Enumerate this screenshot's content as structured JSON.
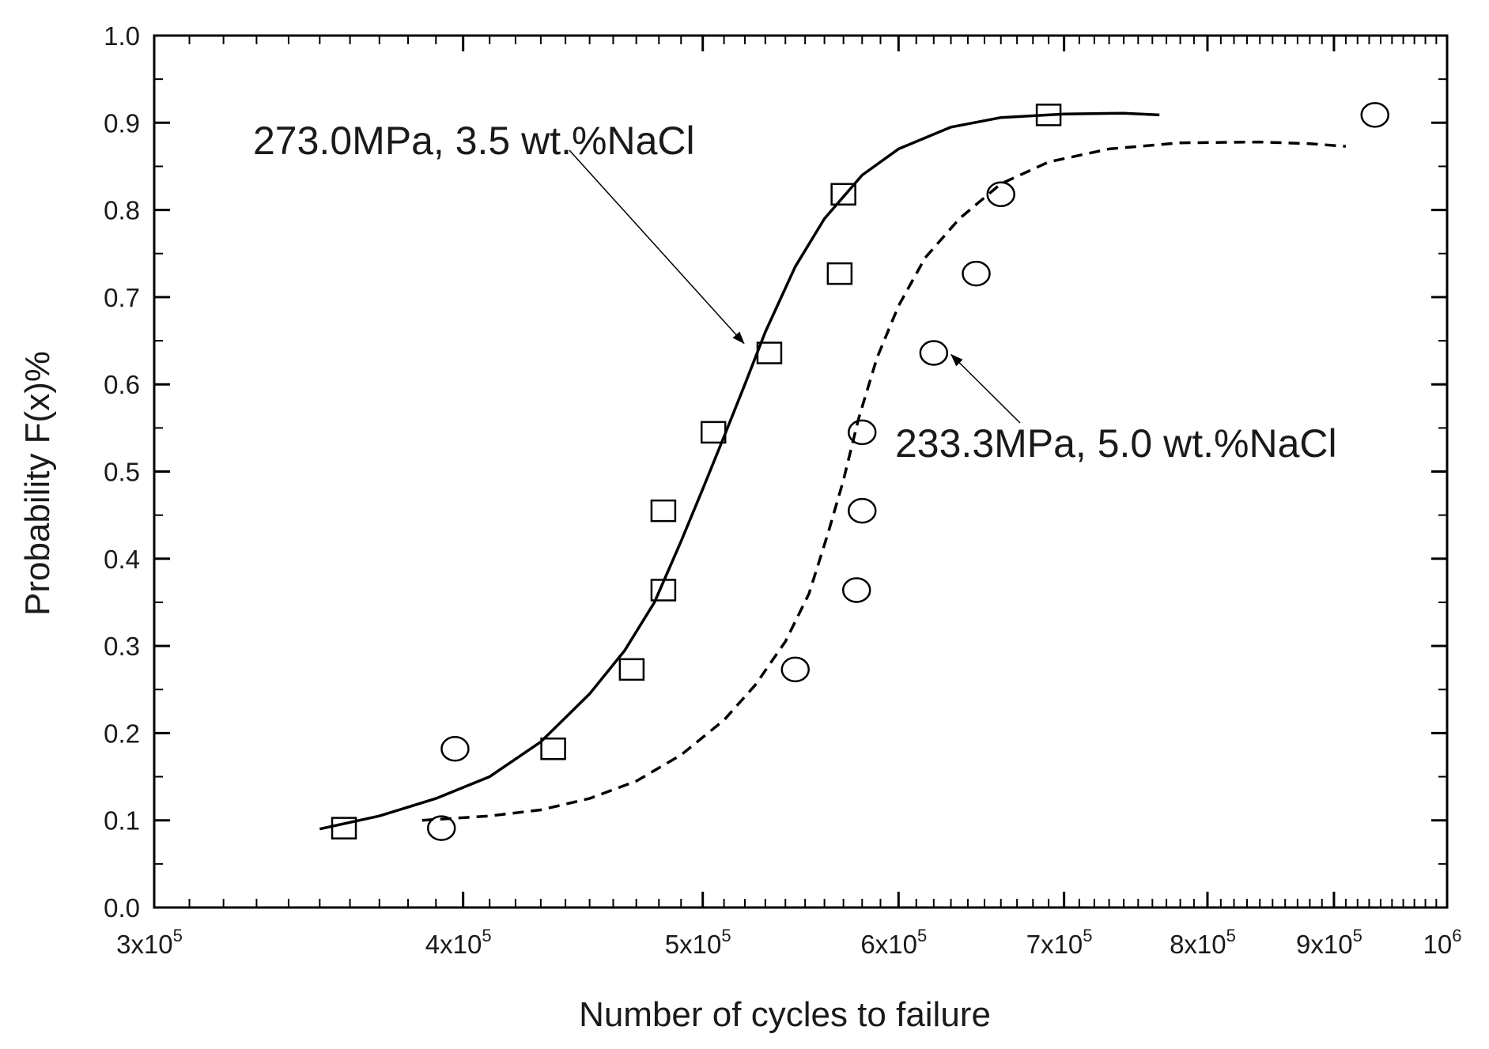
{
  "chart_data": {
    "type": "scatter",
    "title": "",
    "xlabel": "Number of cycles to failure",
    "ylabel": "Probability F(x)%",
    "xscale": "log",
    "xlim": [
      300000,
      1000000
    ],
    "ylim": [
      0.0,
      1.0
    ],
    "x_ticks": [
      {
        "value": 300000,
        "mant": "3x10",
        "exp": "5"
      },
      {
        "value": 400000,
        "mant": "4x10",
        "exp": "5"
      },
      {
        "value": 500000,
        "mant": "5x10",
        "exp": "5"
      },
      {
        "value": 600000,
        "mant": "6x10",
        "exp": "5"
      },
      {
        "value": 700000,
        "mant": "7x10",
        "exp": "5"
      },
      {
        "value": 800000,
        "mant": "8x10",
        "exp": "5"
      },
      {
        "value": 900000,
        "mant": "9x10",
        "exp": "5"
      },
      {
        "value": 1000000,
        "mant": "10",
        "exp": "6"
      }
    ],
    "y_ticks": [
      "0.0",
      "0.1",
      "0.2",
      "0.3",
      "0.4",
      "0.5",
      "0.6",
      "0.7",
      "0.8",
      "0.9",
      "1.0"
    ],
    "series": [
      {
        "name": "273.0MPa, 3.5 wt.%NaCl",
        "marker": "square",
        "line_style": "solid",
        "points": [
          [
            358000,
            0.091
          ],
          [
            435000,
            0.182
          ],
          [
            468000,
            0.273
          ],
          [
            482000,
            0.364
          ],
          [
            482000,
            0.455
          ],
          [
            505000,
            0.545
          ],
          [
            532000,
            0.636
          ],
          [
            568000,
            0.727
          ],
          [
            570000,
            0.818
          ],
          [
            690000,
            0.909
          ]
        ],
        "fit": [
          [
            350000,
            0.09
          ],
          [
            370000,
            0.105
          ],
          [
            390000,
            0.125
          ],
          [
            410000,
            0.15
          ],
          [
            430000,
            0.19
          ],
          [
            450000,
            0.245
          ],
          [
            465000,
            0.295
          ],
          [
            478000,
            0.35
          ],
          [
            490000,
            0.42
          ],
          [
            500000,
            0.48
          ],
          [
            510000,
            0.54
          ],
          [
            520000,
            0.6
          ],
          [
            530000,
            0.66
          ],
          [
            545000,
            0.735
          ],
          [
            560000,
            0.79
          ],
          [
            580000,
            0.84
          ],
          [
            600000,
            0.87
          ],
          [
            630000,
            0.895
          ],
          [
            660000,
            0.906
          ],
          [
            700000,
            0.91
          ],
          [
            740000,
            0.911
          ],
          [
            765000,
            0.909
          ]
        ]
      },
      {
        "name": "233.3MPa, 5.0 wt.%NaCl",
        "marker": "circle",
        "line_style": "dashed",
        "points": [
          [
            392000,
            0.091
          ],
          [
            397000,
            0.182
          ],
          [
            545000,
            0.273
          ],
          [
            577000,
            0.364
          ],
          [
            580000,
            0.455
          ],
          [
            580000,
            0.545
          ],
          [
            620000,
            0.636
          ],
          [
            645000,
            0.727
          ],
          [
            660000,
            0.818
          ],
          [
            935000,
            0.909
          ]
        ],
        "fit": [
          [
            385000,
            0.1
          ],
          [
            410000,
            0.105
          ],
          [
            430000,
            0.112
          ],
          [
            450000,
            0.125
          ],
          [
            470000,
            0.145
          ],
          [
            490000,
            0.175
          ],
          [
            510000,
            0.215
          ],
          [
            525000,
            0.255
          ],
          [
            540000,
            0.305
          ],
          [
            552000,
            0.36
          ],
          [
            562000,
            0.43
          ],
          [
            570000,
            0.49
          ],
          [
            578000,
            0.56
          ],
          [
            588000,
            0.63
          ],
          [
            600000,
            0.69
          ],
          [
            615000,
            0.745
          ],
          [
            635000,
            0.79
          ],
          [
            660000,
            0.83
          ],
          [
            690000,
            0.855
          ],
          [
            730000,
            0.87
          ],
          [
            780000,
            0.877
          ],
          [
            840000,
            0.878
          ],
          [
            880000,
            0.876
          ],
          [
            910000,
            0.873
          ]
        ]
      }
    ],
    "annotations": [
      {
        "text": "273.0MPa, 3.5 wt.%NaCl",
        "target": [
          532000,
          0.636
        ]
      },
      {
        "text": "233.3MPa, 5.0 wt.%NaCl",
        "target": [
          620000,
          0.636
        ]
      }
    ]
  }
}
